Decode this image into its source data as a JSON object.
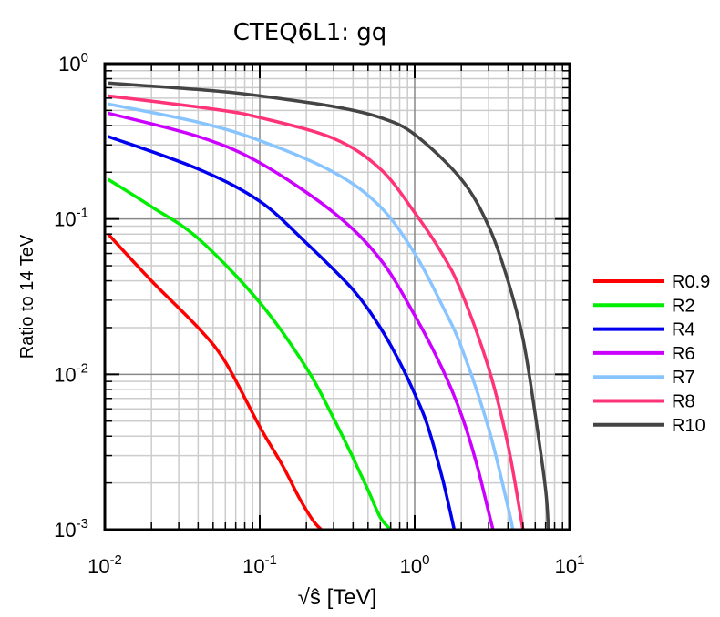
{
  "chart_data": {
    "type": "line",
    "title": "CTEQ6L1: gq",
    "xlabel": "√ŝ [TeV]",
    "ylabel": "Ratio to 14 TeV",
    "xscale": "log",
    "yscale": "log",
    "xlim": [
      0.01,
      10
    ],
    "ylim": [
      0.001,
      1
    ],
    "grid": true,
    "legend_position": "right",
    "x_ticks": [
      {
        "base": "10",
        "exp": "-2"
      },
      {
        "base": "10",
        "exp": "-1"
      },
      {
        "base": "10",
        "exp": "0"
      },
      {
        "base": "10",
        "exp": "1"
      }
    ],
    "y_ticks": [
      {
        "base": "10",
        "exp": "-3"
      },
      {
        "base": "10",
        "exp": "-2"
      },
      {
        "base": "10",
        "exp": "-1"
      },
      {
        "base": "10",
        "exp": "0"
      }
    ],
    "series": [
      {
        "name": "R0.9",
        "color": "#ff0000",
        "x": [
          0.0105,
          0.02,
          0.04,
          0.06,
          0.1,
          0.14,
          0.18,
          0.22,
          0.25
        ],
        "y": [
          0.08,
          0.04,
          0.02,
          0.012,
          0.0046,
          0.0026,
          0.0016,
          0.00115,
          0.001
        ]
      },
      {
        "name": "R2",
        "color": "#00ee00",
        "x": [
          0.0105,
          0.02,
          0.04,
          0.1,
          0.2,
          0.3,
          0.4,
          0.5,
          0.6,
          0.7
        ],
        "y": [
          0.18,
          0.12,
          0.075,
          0.029,
          0.011,
          0.0052,
          0.0029,
          0.0018,
          0.0012,
          0.001
        ]
      },
      {
        "name": "R4",
        "color": "#0000ee",
        "x": [
          0.0105,
          0.04,
          0.1,
          0.2,
          0.4,
          0.6,
          0.8,
          1.0,
          1.2,
          1.5,
          1.8
        ],
        "y": [
          0.34,
          0.21,
          0.13,
          0.07,
          0.035,
          0.02,
          0.012,
          0.0075,
          0.0048,
          0.0022,
          0.001
        ]
      },
      {
        "name": "R6",
        "color": "#cc00ff",
        "x": [
          0.0105,
          0.04,
          0.1,
          0.3,
          0.6,
          1.0,
          1.5,
          2.0,
          2.5,
          3.0,
          3.2
        ],
        "y": [
          0.48,
          0.34,
          0.23,
          0.11,
          0.055,
          0.024,
          0.011,
          0.0055,
          0.0027,
          0.0013,
          0.001
        ]
      },
      {
        "name": "R7",
        "color": "#88c4ff",
        "x": [
          0.0105,
          0.04,
          0.1,
          0.3,
          0.6,
          1.0,
          1.5,
          2.0,
          3.0,
          4.0,
          4.3
        ],
        "y": [
          0.55,
          0.42,
          0.32,
          0.2,
          0.12,
          0.06,
          0.028,
          0.015,
          0.0045,
          0.0014,
          0.001
        ]
      },
      {
        "name": "R8",
        "color": "#ff3377",
        "x": [
          0.0105,
          0.05,
          0.1,
          0.3,
          0.6,
          1.0,
          1.5,
          2.0,
          3.0,
          4.0,
          5.0
        ],
        "y": [
          0.62,
          0.51,
          0.45,
          0.33,
          0.21,
          0.11,
          0.06,
          0.034,
          0.011,
          0.0035,
          0.001
        ]
      },
      {
        "name": "R10",
        "color": "#444444",
        "x": [
          0.0105,
          0.05,
          0.1,
          0.3,
          0.6,
          1.0,
          2.0,
          3.0,
          4.0,
          5.0,
          6.0,
          7.0,
          7.3
        ],
        "y": [
          0.75,
          0.67,
          0.62,
          0.53,
          0.45,
          0.35,
          0.18,
          0.09,
          0.04,
          0.017,
          0.0055,
          0.0018,
          0.001
        ]
      }
    ]
  }
}
